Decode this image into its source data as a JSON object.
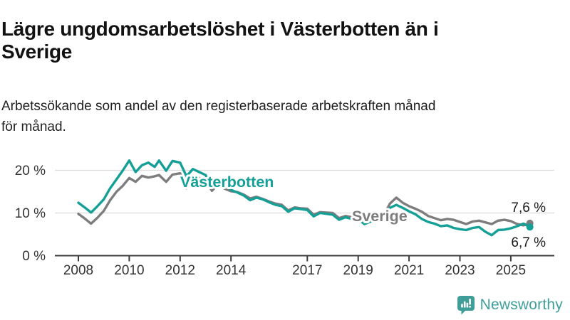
{
  "header": {
    "title_lines": [
      "Lägre ungdomsarbetslöshet i Västerbotten än i",
      "Sverige"
    ],
    "subtitle_lines": [
      "Arbetssökande som andel av den registerbaserade arbetskraften månad",
      "för månad."
    ]
  },
  "chart_data": {
    "type": "line",
    "title": "Lägre ungdomsarbetslöshet i Västerbotten än i Sverige",
    "subtitle": "Arbetssökande som andel av den registerbaserade arbetskraften månad för månad.",
    "x_unit": "year (monthly data)",
    "x_range": [
      2008,
      2025.75
    ],
    "ylim": [
      0,
      24
    ],
    "grid": "horizontal",
    "legend_position": "inline-labels",
    "y_ticks": [
      {
        "value": 20,
        "label": "20 %"
      },
      {
        "value": 10,
        "label": "10 %"
      },
      {
        "value": 0,
        "label": "0 %"
      }
    ],
    "x_ticks": [
      {
        "value": 2008,
        "label": "2008"
      },
      {
        "value": 2010,
        "label": "2010"
      },
      {
        "value": 2012,
        "label": "2012"
      },
      {
        "value": 2014,
        "label": "2014"
      },
      {
        "value": 2017,
        "label": "2017"
      },
      {
        "value": 2019,
        "label": "2019"
      },
      {
        "value": 2021,
        "label": "2021"
      },
      {
        "value": 2023,
        "label": "2023"
      },
      {
        "value": 2025,
        "label": "2025"
      }
    ],
    "axis_color": "#3c3c3c",
    "grid_color": "#dcdcdc",
    "tick_label_color": "#333333",
    "end_label_color": "#1a1a1a",
    "series": [
      {
        "name": "Sverige",
        "color": "#7d7d7d",
        "end_label": "7,6 %",
        "end_value": 7.6,
        "points": [
          [
            2008,
            9.8
          ],
          [
            2008.25,
            8.7
          ],
          [
            2008.5,
            7.5
          ],
          [
            2008.75,
            8.9
          ],
          [
            2009,
            10.5
          ],
          [
            2009.25,
            13.0
          ],
          [
            2009.5,
            15.0
          ],
          [
            2009.75,
            16.4
          ],
          [
            2010,
            18.2
          ],
          [
            2010.25,
            17.3
          ],
          [
            2010.5,
            18.7
          ],
          [
            2010.75,
            18.3
          ],
          [
            2011,
            18.6
          ],
          [
            2011.17,
            18.9
          ],
          [
            2011.45,
            17.3
          ],
          [
            2011.7,
            19.0
          ],
          [
            2012,
            19.3
          ],
          [
            2012.25,
            15.8
          ],
          [
            2012.5,
            18.0
          ],
          [
            2012.75,
            18.2
          ],
          [
            2013,
            17.8
          ],
          [
            2013.25,
            15.2
          ],
          [
            2013.5,
            16.7
          ],
          [
            2013.75,
            15.7
          ],
          [
            2014,
            15.1
          ],
          [
            2014.25,
            14.9
          ],
          [
            2014.5,
            14.3
          ],
          [
            2014.75,
            13.4
          ],
          [
            2015,
            13.8
          ],
          [
            2015.25,
            13.3
          ],
          [
            2015.5,
            12.7
          ],
          [
            2015.75,
            12.2
          ],
          [
            2016,
            11.9
          ],
          [
            2016.25,
            10.6
          ],
          [
            2016.5,
            11.3
          ],
          [
            2016.75,
            11.1
          ],
          [
            2017,
            11.0
          ],
          [
            2017.25,
            9.6
          ],
          [
            2017.5,
            10.2
          ],
          [
            2017.75,
            10.1
          ],
          [
            2018,
            10.0
          ],
          [
            2018.25,
            8.8
          ],
          [
            2018.5,
            9.3
          ],
          [
            2018.75,
            9.0
          ],
          [
            2019,
            8.9
          ],
          [
            2019.25,
            8.3
          ],
          [
            2019.5,
            8.7
          ],
          [
            2019.75,
            9.0
          ],
          [
            2020,
            9.4
          ],
          [
            2020.25,
            12.2
          ],
          [
            2020.5,
            13.6
          ],
          [
            2020.75,
            12.4
          ],
          [
            2021,
            11.6
          ],
          [
            2021.25,
            11.0
          ],
          [
            2021.5,
            10.3
          ],
          [
            2021.75,
            9.3
          ],
          [
            2022,
            8.8
          ],
          [
            2022.25,
            8.3
          ],
          [
            2022.5,
            8.6
          ],
          [
            2022.75,
            8.4
          ],
          [
            2023,
            7.9
          ],
          [
            2023.25,
            7.4
          ],
          [
            2023.5,
            8.0
          ],
          [
            2023.75,
            8.2
          ],
          [
            2024,
            7.8
          ],
          [
            2024.25,
            7.4
          ],
          [
            2024.5,
            8.2
          ],
          [
            2024.75,
            8.4
          ],
          [
            2025,
            8.1
          ],
          [
            2025.25,
            7.4
          ],
          [
            2025.5,
            7.1
          ],
          [
            2025.75,
            7.6
          ]
        ]
      },
      {
        "name": "Västerbotten",
        "color": "#14a096",
        "end_label": "6,7 %",
        "end_value": 6.7,
        "points": [
          [
            2008,
            12.4
          ],
          [
            2008.25,
            11.3
          ],
          [
            2008.5,
            10.1
          ],
          [
            2008.75,
            11.6
          ],
          [
            2009,
            13.2
          ],
          [
            2009.25,
            15.8
          ],
          [
            2009.5,
            17.9
          ],
          [
            2009.75,
            20.0
          ],
          [
            2010,
            22.3
          ],
          [
            2010.25,
            19.6
          ],
          [
            2010.5,
            21.2
          ],
          [
            2010.75,
            21.8
          ],
          [
            2011,
            20.8
          ],
          [
            2011.17,
            22.3
          ],
          [
            2011.45,
            19.9
          ],
          [
            2011.7,
            22.2
          ],
          [
            2012,
            21.8
          ],
          [
            2012.25,
            18.6
          ],
          [
            2012.5,
            20.3
          ],
          [
            2012.75,
            19.6
          ],
          [
            2013,
            18.9
          ],
          [
            2013.25,
            16.2
          ],
          [
            2013.5,
            17.8
          ],
          [
            2013.75,
            16.8
          ],
          [
            2014,
            15.4
          ],
          [
            2014.25,
            14.8
          ],
          [
            2014.5,
            14.1
          ],
          [
            2014.75,
            13.0
          ],
          [
            2015,
            13.6
          ],
          [
            2015.25,
            13.2
          ],
          [
            2015.5,
            12.5
          ],
          [
            2015.75,
            11.9
          ],
          [
            2016,
            11.6
          ],
          [
            2016.25,
            10.3
          ],
          [
            2016.5,
            11.1
          ],
          [
            2016.75,
            10.9
          ],
          [
            2017,
            10.7
          ],
          [
            2017.25,
            9.2
          ],
          [
            2017.5,
            10.0
          ],
          [
            2017.75,
            9.8
          ],
          [
            2018,
            9.6
          ],
          [
            2018.25,
            8.4
          ],
          [
            2018.5,
            9.0
          ],
          [
            2018.75,
            8.6
          ],
          [
            2019,
            8.5
          ],
          [
            2019.25,
            7.4
          ],
          [
            2019.5,
            8.0
          ],
          [
            2019.75,
            8.3
          ],
          [
            2020,
            8.8
          ],
          [
            2020.25,
            11.2
          ],
          [
            2020.5,
            11.9
          ],
          [
            2020.75,
            11.2
          ],
          [
            2021,
            10.4
          ],
          [
            2021.25,
            9.7
          ],
          [
            2021.5,
            8.6
          ],
          [
            2021.75,
            7.9
          ],
          [
            2022,
            7.5
          ],
          [
            2022.25,
            6.9
          ],
          [
            2022.5,
            7.1
          ],
          [
            2022.75,
            6.5
          ],
          [
            2023,
            6.2
          ],
          [
            2023.25,
            6.0
          ],
          [
            2023.5,
            6.5
          ],
          [
            2023.75,
            6.7
          ],
          [
            2024,
            5.6
          ],
          [
            2024.25,
            4.8
          ],
          [
            2024.5,
            6.0
          ],
          [
            2024.75,
            6.1
          ],
          [
            2025,
            6.4
          ],
          [
            2025.25,
            6.9
          ],
          [
            2025.5,
            7.5
          ],
          [
            2025.75,
            6.7
          ]
        ]
      }
    ]
  },
  "footer": {
    "brand": "Newsworthy",
    "brand_color": "#3f9f98",
    "logo_icon": "bar-chart-speech-bubble"
  }
}
